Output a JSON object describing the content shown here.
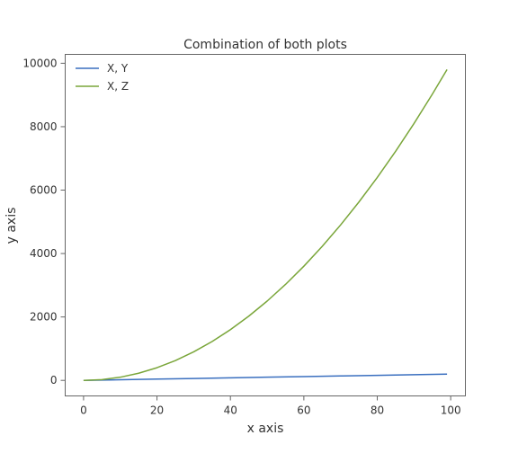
{
  "chart_data": {
    "type": "line",
    "title": "Combination of both plots",
    "xlabel": "x axis",
    "ylabel": "y axis",
    "xlim": [
      -5,
      104
    ],
    "ylim": [
      -490,
      10280
    ],
    "xticks": [
      0,
      20,
      40,
      60,
      80,
      100
    ],
    "yticks": [
      0,
      2000,
      4000,
      6000,
      8000,
      10000
    ],
    "xtick_labels": [
      "0",
      "20",
      "40",
      "60",
      "80",
      "100"
    ],
    "ytick_labels": [
      "0",
      "2000",
      "4000",
      "6000",
      "8000",
      "10000"
    ],
    "grid": false,
    "legend_position": "top-left",
    "series": [
      {
        "name": "X, Y",
        "color": "#3a6fbf",
        "x": [
          0,
          10,
          20,
          30,
          40,
          50,
          60,
          70,
          80,
          90,
          99
        ],
        "y": [
          0,
          20,
          40,
          60,
          80,
          100,
          120,
          140,
          160,
          180,
          198
        ]
      },
      {
        "name": "X, Z",
        "color": "#7aa63a",
        "x": [
          0,
          5,
          10,
          15,
          20,
          25,
          30,
          35,
          40,
          45,
          50,
          55,
          60,
          65,
          70,
          75,
          80,
          85,
          90,
          95,
          99
        ],
        "y": [
          0,
          25,
          100,
          225,
          400,
          625,
          900,
          1225,
          1600,
          2025,
          2500,
          3025,
          3600,
          4225,
          4900,
          5625,
          6400,
          7225,
          8100,
          9025,
          9801
        ]
      }
    ]
  }
}
